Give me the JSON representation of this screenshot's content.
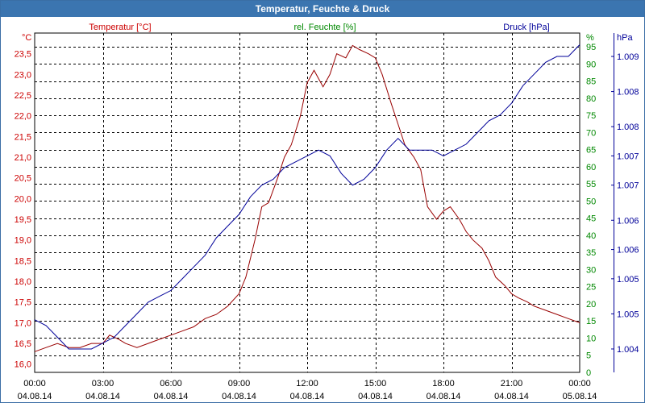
{
  "window": {
    "title": "Temperatur, Feuchte & Druck"
  },
  "chart_data": {
    "type": "line",
    "title": "Temperatur, Feuchte & Druck",
    "grid": true,
    "x_ticks": [
      {
        "hours": 0,
        "time": "00:00",
        "date": "04.08.14"
      },
      {
        "hours": 3,
        "time": "03:00",
        "date": "04.08.14"
      },
      {
        "hours": 6,
        "time": "06:00",
        "date": "04.08.14"
      },
      {
        "hours": 9,
        "time": "09:00",
        "date": "04.08.14"
      },
      {
        "hours": 12,
        "time": "12:00",
        "date": "04.08.14"
      },
      {
        "hours": 15,
        "time": "15:00",
        "date": "04.08.14"
      },
      {
        "hours": 18,
        "time": "18:00",
        "date": "04.08.14"
      },
      {
        "hours": 21,
        "time": "21:00",
        "date": "04.08.14"
      },
      {
        "hours": 24,
        "time": "00:00",
        "date": "05.08.14"
      }
    ],
    "xlim": [
      0,
      24
    ],
    "axes": {
      "temperature": {
        "unit": "°C",
        "label": "Temperatur [°C]",
        "color": "#cc0000",
        "ylim": [
          15.8,
          24.0
        ],
        "ticks": [
          "16,0",
          "16,5",
          "17,0",
          "17,5",
          "18,0",
          "18,5",
          "19,0",
          "19,5",
          "20,0",
          "20,5",
          "21,0",
          "21,5",
          "22,0",
          "22,5",
          "23,0",
          "23,5"
        ],
        "tick_values": [
          16.0,
          16.5,
          17.0,
          17.5,
          18.0,
          18.5,
          19.0,
          19.5,
          20.0,
          20.5,
          21.0,
          21.5,
          22.0,
          22.5,
          23.0,
          23.5
        ]
      },
      "humidity": {
        "unit": "%",
        "label": "rel. Feuchte [%]",
        "color": "#008800",
        "ylim": [
          0,
          99
        ],
        "ticks": [
          "0",
          "5",
          "10",
          "15",
          "20",
          "25",
          "30",
          "35",
          "40",
          "45",
          "50",
          "55",
          "60",
          "65",
          "70",
          "75",
          "80",
          "85",
          "90",
          "95"
        ],
        "tick_values": [
          0,
          5,
          10,
          15,
          20,
          25,
          30,
          35,
          40,
          45,
          50,
          55,
          60,
          65,
          70,
          75,
          80,
          85,
          90,
          95
        ]
      },
      "pressure": {
        "unit": "hPa",
        "label": "Druck [hPa]",
        "color": "#000099",
        "ylim": [
          1003.6,
          1009.4
        ],
        "ticks": [
          "1.004",
          "1.005",
          "1.005",
          "1.006",
          "1.006",
          "1.007",
          "1.007",
          "1.008",
          "1.008",
          "1.009"
        ],
        "tick_values": [
          1004.0,
          1004.6,
          1005.2,
          1005.7,
          1006.2,
          1006.8,
          1007.3,
          1007.8,
          1008.4,
          1009.0
        ]
      }
    },
    "series": [
      {
        "name": "Temperatur [°C]",
        "axis": "temperature",
        "color": "#990000",
        "x": [
          0,
          0.5,
          1.0,
          1.5,
          2.0,
          2.5,
          3.0,
          3.3,
          3.7,
          4.0,
          4.5,
          5.0,
          5.5,
          6.0,
          6.5,
          7.0,
          7.5,
          8.0,
          8.5,
          9.0,
          9.3,
          9.7,
          10.0,
          10.3,
          10.7,
          11.0,
          11.3,
          11.7,
          12.0,
          12.3,
          12.7,
          13.0,
          13.3,
          13.7,
          14.0,
          14.3,
          14.7,
          15.0,
          15.3,
          15.7,
          16.0,
          16.3,
          16.7,
          17.0,
          17.3,
          17.7,
          18.0,
          18.3,
          18.7,
          19.0,
          19.3,
          19.7,
          20.0,
          20.3,
          20.7,
          21.0,
          21.3,
          21.7,
          22.0,
          22.5,
          23.0,
          23.5,
          24.0
        ],
        "values": [
          16.3,
          16.4,
          16.5,
          16.4,
          16.4,
          16.5,
          16.5,
          16.7,
          16.6,
          16.5,
          16.4,
          16.5,
          16.6,
          16.7,
          16.8,
          16.9,
          17.1,
          17.2,
          17.4,
          17.7,
          18.1,
          19.0,
          19.8,
          19.9,
          20.5,
          21.0,
          21.3,
          22.0,
          22.8,
          23.1,
          22.7,
          23.0,
          23.5,
          23.4,
          23.7,
          23.6,
          23.5,
          23.4,
          23.0,
          22.3,
          21.8,
          21.3,
          21.0,
          20.7,
          19.8,
          19.5,
          19.7,
          19.8,
          19.5,
          19.2,
          19.0,
          18.8,
          18.5,
          18.1,
          17.9,
          17.7,
          17.6,
          17.5,
          17.4,
          17.3,
          17.2,
          17.1,
          17.0
        ]
      },
      {
        "name": "Druck [hPa]",
        "axis": "pressure",
        "color": "#000099",
        "x": [
          0,
          0.5,
          1.0,
          1.5,
          2.0,
          2.5,
          3.0,
          3.5,
          4.0,
          4.5,
          5.0,
          5.5,
          6.0,
          6.5,
          7.0,
          7.5,
          8.0,
          8.5,
          9.0,
          9.5,
          10.0,
          10.5,
          11.0,
          11.5,
          12.0,
          12.5,
          13.0,
          13.5,
          14.0,
          14.5,
          15.0,
          15.5,
          16.0,
          16.5,
          17.0,
          17.5,
          18.0,
          18.5,
          19.0,
          19.5,
          20.0,
          20.5,
          21.0,
          21.5,
          22.0,
          22.5,
          23.0,
          23.5,
          24.0
        ],
        "values": [
          1004.5,
          1004.4,
          1004.2,
          1004.0,
          1004.0,
          1004.0,
          1004.1,
          1004.2,
          1004.4,
          1004.6,
          1004.8,
          1004.9,
          1005.0,
          1005.2,
          1005.4,
          1005.6,
          1005.9,
          1006.1,
          1006.3,
          1006.6,
          1006.8,
          1006.9,
          1007.1,
          1007.2,
          1007.3,
          1007.4,
          1007.3,
          1007.0,
          1006.8,
          1006.9,
          1007.1,
          1007.4,
          1007.6,
          1007.4,
          1007.4,
          1007.4,
          1007.3,
          1007.4,
          1007.5,
          1007.7,
          1007.9,
          1008.0,
          1008.2,
          1008.5,
          1008.7,
          1008.9,
          1009.0,
          1009.0,
          1009.2
        ]
      }
    ]
  }
}
